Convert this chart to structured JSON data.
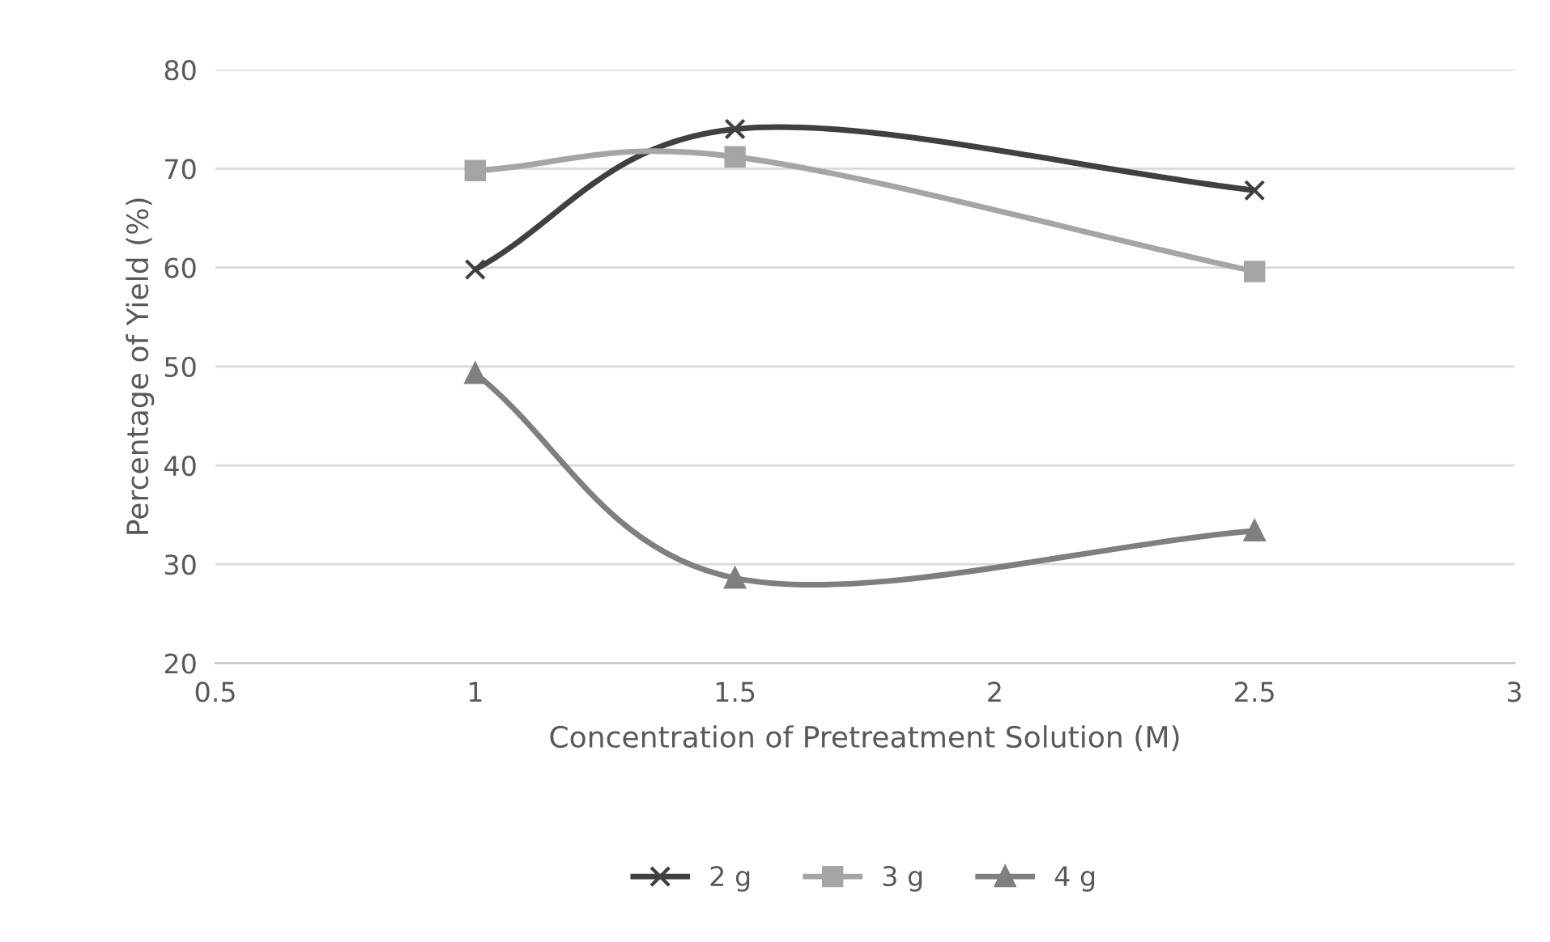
{
  "chart_data": {
    "type": "line",
    "xlabel": "Concentration of Pretreatment Solution (M)",
    "ylabel": "Percentage of Yield (%)",
    "x": [
      1,
      1.5,
      2.5
    ],
    "series": [
      {
        "name": "2 g",
        "color": "#404040",
        "marker": "cross",
        "values": [
          59.8,
          74.0,
          67.8
        ]
      },
      {
        "name": "3 g",
        "color": "#a5a5a5",
        "marker": "square",
        "values": [
          69.8,
          71.2,
          59.6
        ]
      },
      {
        "name": "4 g",
        "color": "#7f7f7f",
        "marker": "triangle",
        "values": [
          49.3,
          28.6,
          33.4
        ]
      }
    ],
    "xlim": [
      0.5,
      3
    ],
    "xticks": [
      0.5,
      1,
      1.5,
      2,
      2.5,
      3
    ],
    "ylim": [
      20,
      80
    ],
    "yticks": [
      20,
      30,
      40,
      50,
      60,
      70,
      80
    ],
    "grid": "y",
    "legend": "bottom",
    "line_style": "solid"
  }
}
